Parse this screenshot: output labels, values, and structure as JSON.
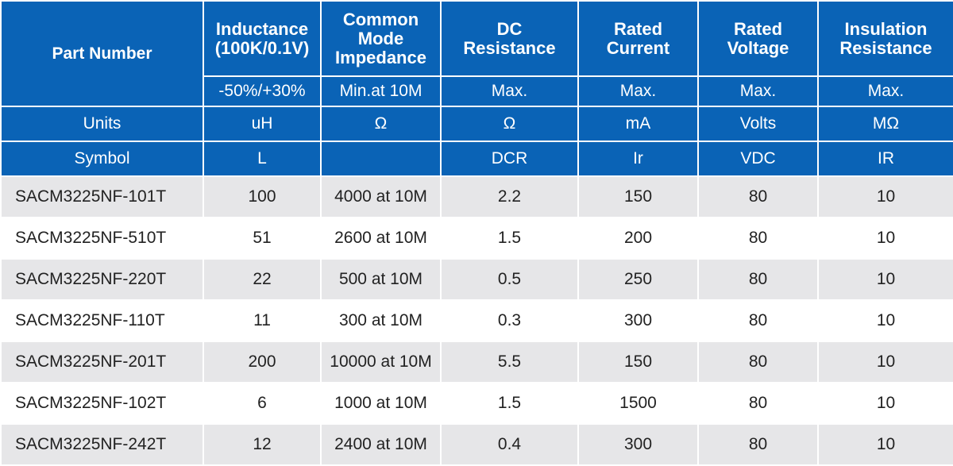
{
  "header": {
    "part_number": "Part Number",
    "columns": [
      [
        "Inductance",
        "(100K/0.1V)"
      ],
      [
        "Common",
        "Mode",
        "Impedance"
      ],
      [
        "DC",
        "Resistance"
      ],
      [
        "Rated",
        "Current"
      ],
      [
        "Rated",
        "Voltage"
      ],
      [
        "Insulation",
        "Resistance"
      ]
    ]
  },
  "conditions": [
    "-50%/+30%",
    "Min.at 10M",
    "Max.",
    "Max.",
    "Max.",
    "Max."
  ],
  "units": {
    "label": "Units",
    "values": [
      "uH",
      "Ω",
      "Ω",
      "mA",
      "Volts",
      "MΩ"
    ]
  },
  "symbol": {
    "label": "Symbol",
    "values": [
      "L",
      "",
      "DCR",
      "Ir",
      "VDC",
      "IR"
    ]
  },
  "rows": [
    [
      "SACM3225NF-101T",
      "100",
      "4000 at 10M",
      "2.2",
      "150",
      "80",
      "10"
    ],
    [
      "SACM3225NF-510T",
      "51",
      "2600 at 10M",
      "1.5",
      "200",
      "80",
      "10"
    ],
    [
      "SACM3225NF-220T",
      "22",
      "500 at 10M",
      "0.5",
      "250",
      "80",
      "10"
    ],
    [
      "SACM3225NF-110T",
      "11",
      "300 at 10M",
      "0.3",
      "300",
      "80",
      "10"
    ],
    [
      "SACM3225NF-201T",
      "200",
      "10000 at 10M",
      "5.5",
      "150",
      "80",
      "10"
    ],
    [
      "SACM3225NF-102T",
      "6",
      "1000 at 10M",
      "1.5",
      "1500",
      "80",
      "10"
    ],
    [
      "SACM3225NF-242T",
      "12",
      "2400 at 10M",
      "0.4",
      "300",
      "80",
      "10"
    ]
  ],
  "colors": {
    "header_blue": "#0a63b6",
    "row_gray": "#e6e6e8",
    "row_white": "#ffffff",
    "text_dark": "#222222"
  }
}
